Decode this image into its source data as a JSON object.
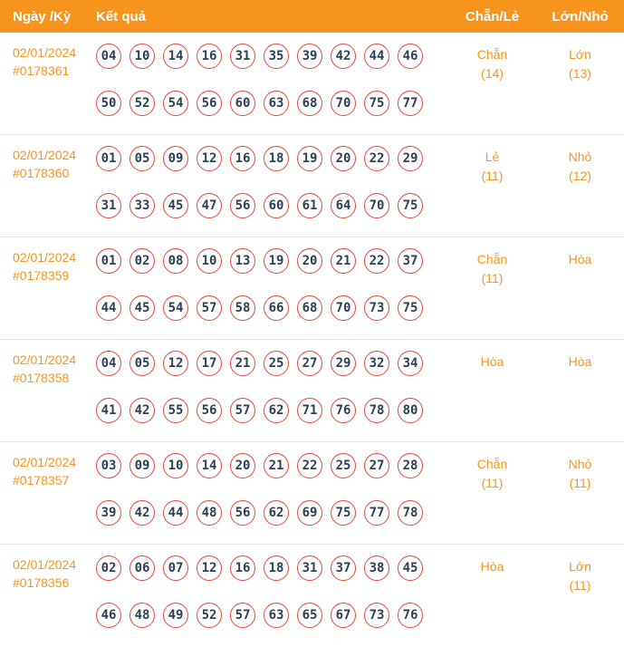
{
  "colors": {
    "accent": "#f7941d",
    "ball_border": "#e2473d",
    "number_color": "#2d3e55"
  },
  "header": {
    "col_date": "Ngày /Kỳ",
    "col_result": "Kết quả",
    "col_even_odd": "Chẵn/Lẻ",
    "col_big_small": "Lớn/Nhỏ"
  },
  "rows": [
    {
      "date": "02/01/2024",
      "draw_id": "#0178361",
      "numbers_row1": [
        "04",
        "10",
        "14",
        "16",
        "31",
        "35",
        "39",
        "42",
        "44",
        "46"
      ],
      "numbers_row2": [
        "50",
        "52",
        "54",
        "56",
        "60",
        "63",
        "68",
        "70",
        "75",
        "77"
      ],
      "even_odd_label": "Chẵn",
      "even_odd_count": "(14)",
      "big_small_label": "Lớn",
      "big_small_count": "(13)"
    },
    {
      "date": "02/01/2024",
      "draw_id": "#0178360",
      "numbers_row1": [
        "01",
        "05",
        "09",
        "12",
        "16",
        "18",
        "19",
        "20",
        "22",
        "29"
      ],
      "numbers_row2": [
        "31",
        "33",
        "45",
        "47",
        "56",
        "60",
        "61",
        "64",
        "70",
        "75"
      ],
      "even_odd_label": "Lẻ",
      "even_odd_count": "(11)",
      "big_small_label": "Nhỏ",
      "big_small_count": "(12)"
    },
    {
      "date": "02/01/2024",
      "draw_id": "#0178359",
      "numbers_row1": [
        "01",
        "02",
        "08",
        "10",
        "13",
        "19",
        "20",
        "21",
        "22",
        "37"
      ],
      "numbers_row2": [
        "44",
        "45",
        "54",
        "57",
        "58",
        "66",
        "68",
        "70",
        "73",
        "75"
      ],
      "even_odd_label": "Chẵn",
      "even_odd_count": "(11)",
      "big_small_label": "Hòa",
      "big_small_count": ""
    },
    {
      "date": "02/01/2024",
      "draw_id": "#0178358",
      "numbers_row1": [
        "04",
        "05",
        "12",
        "17",
        "21",
        "25",
        "27",
        "29",
        "32",
        "34"
      ],
      "numbers_row2": [
        "41",
        "42",
        "55",
        "56",
        "57",
        "62",
        "71",
        "76",
        "78",
        "80"
      ],
      "even_odd_label": "Hòa",
      "even_odd_count": "",
      "big_small_label": "Hòa",
      "big_small_count": ""
    },
    {
      "date": "02/01/2024",
      "draw_id": "#0178357",
      "numbers_row1": [
        "03",
        "09",
        "10",
        "14",
        "20",
        "21",
        "22",
        "25",
        "27",
        "28"
      ],
      "numbers_row2": [
        "39",
        "42",
        "44",
        "48",
        "56",
        "62",
        "69",
        "75",
        "77",
        "78"
      ],
      "even_odd_label": "Chẵn",
      "even_odd_count": "(11)",
      "big_small_label": "Nhỏ",
      "big_small_count": "(11)"
    },
    {
      "date": "02/01/2024",
      "draw_id": "#0178356",
      "numbers_row1": [
        "02",
        "06",
        "07",
        "12",
        "16",
        "18",
        "31",
        "37",
        "38",
        "45"
      ],
      "numbers_row2": [
        "46",
        "48",
        "49",
        "52",
        "57",
        "63",
        "65",
        "67",
        "73",
        "76"
      ],
      "even_odd_label": "Hòa",
      "even_odd_count": "",
      "big_small_label": "Lớn",
      "big_small_count": "(11)"
    }
  ]
}
